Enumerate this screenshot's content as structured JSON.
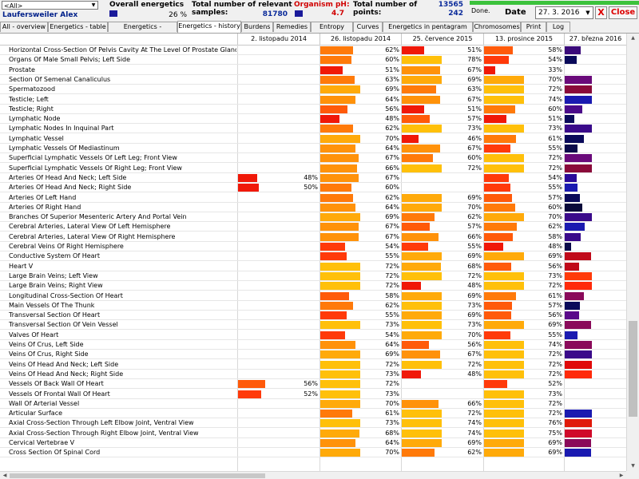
{
  "header": {
    "filter_value": "<All>",
    "user_name": "Laufersweiler Alex",
    "overall_label": "Overall energetics",
    "overall_value": "26 %",
    "samples_label_1": "Total number of relevant",
    "samples_label_2": "samples:",
    "samples_value": "81780",
    "ph_label": "Organism pH:",
    "ph_value": "4.7",
    "points_label_1": "Total number of",
    "points_label_2": "points:",
    "points_value_1": "13565",
    "points_value_2": "242",
    "progress": 1.0,
    "status": "Done.",
    "date_label": "Date",
    "date_value": "27. 3. 2016",
    "x_label": "X",
    "close_label": "Close"
  },
  "tabs": [
    "All - overview",
    "Energetics - table",
    "Energetics - overview",
    "Energetics - history",
    "Burdens",
    "Remedies",
    "Entropy analysis",
    "Curves",
    "Energetics in pentagram",
    "Chromosomes",
    "Print",
    "Log"
  ],
  "active_tab": "Energetics - history",
  "columns": [
    "2. listopadu 2014",
    "26. listopadu 2014",
    "25. července 2015",
    "13. prosince 2015",
    "27. března 2016"
  ],
  "rows": [
    {
      "name": "Horizontal Cross-Section Of Pelvis Cavity At The Level Of Prostate Gland",
      "v": [
        null,
        62,
        51,
        58,
        0
      ]
    },
    {
      "name": "Organs Of Male Small Pelvis; Left Side",
      "v": [
        null,
        60,
        78,
        54,
        0
      ]
    },
    {
      "name": "Prostate",
      "v": [
        null,
        51,
        67,
        33,
        0
      ]
    },
    {
      "name": "Section Of Semenal Canaliculus",
      "v": [
        null,
        63,
        69,
        70,
        0
      ]
    },
    {
      "name": "Spermatozood",
      "v": [
        null,
        69,
        63,
        72,
        0
      ]
    },
    {
      "name": "Testicle; Left",
      "v": [
        null,
        64,
        67,
        74,
        0
      ]
    },
    {
      "name": "Testicle; Right",
      "v": [
        null,
        56,
        51,
        60,
        0
      ]
    },
    {
      "name": "Lymphatic Node",
      "v": [
        null,
        48,
        57,
        51,
        0
      ]
    },
    {
      "name": "Lymphatic Nodes In Inquinal Part",
      "v": [
        null,
        62,
        73,
        73,
        0
      ]
    },
    {
      "name": "Lymphatic Vessel",
      "v": [
        null,
        70,
        46,
        61,
        0
      ]
    },
    {
      "name": "Lymphatic Vessels Of Mediastinum",
      "v": [
        null,
        64,
        67,
        55,
        0
      ]
    },
    {
      "name": "Superficial Lymphatic Vessels Of Left Leg; Front View",
      "v": [
        null,
        67,
        60,
        72,
        0
      ]
    },
    {
      "name": "Superficial Lymphatic Vessels Of Right Leg; Front View",
      "v": [
        null,
        66,
        72,
        72,
        0
      ]
    },
    {
      "name": "Arteries Of Head And Neck; Left Side",
      "v": [
        48,
        67,
        null,
        54,
        0
      ]
    },
    {
      "name": "Arteries Of Head And Neck; Right Side",
      "v": [
        50,
        60,
        null,
        55,
        0
      ]
    },
    {
      "name": "Arteries Of Left Hand",
      "v": [
        null,
        62,
        69,
        57,
        0
      ]
    },
    {
      "name": "Arteries Of Right Hand",
      "v": [
        null,
        64,
        70,
        60,
        0
      ]
    },
    {
      "name": "Branches Of Superior Mesenteric Artery And Portal Vein",
      "v": [
        null,
        69,
        62,
        70,
        0
      ]
    },
    {
      "name": "Cerebral Arteries, Lateral View Of Left Hemisphere",
      "v": [
        null,
        67,
        57,
        62,
        0
      ]
    },
    {
      "name": "Cerebral Arteries, Lateral View Of Right Hemisphere",
      "v": [
        null,
        67,
        66,
        58,
        0
      ]
    },
    {
      "name": "Cerebral Veins Of Right Hemisphere",
      "v": [
        null,
        54,
        55,
        48,
        0
      ]
    },
    {
      "name": "Conductive System Of Heart",
      "v": [
        null,
        55,
        69,
        69,
        0
      ]
    },
    {
      "name": "Heart V",
      "v": [
        null,
        72,
        68,
        56,
        0
      ]
    },
    {
      "name": "Large Brain Veins; Left View",
      "v": [
        null,
        72,
        72,
        73,
        0
      ]
    },
    {
      "name": "Large Brain Veins; Right View",
      "v": [
        null,
        72,
        48,
        72,
        0
      ]
    },
    {
      "name": "Longitudinal Cross-Section Of Heart",
      "v": [
        null,
        58,
        69,
        61,
        0
      ]
    },
    {
      "name": "Main Vessels Of The Thunk",
      "v": [
        null,
        62,
        73,
        57,
        0
      ]
    },
    {
      "name": "Transversal Section Of Heart",
      "v": [
        null,
        55,
        69,
        56,
        0
      ]
    },
    {
      "name": "Transversal Section Of Vein Vessel",
      "v": [
        null,
        73,
        73,
        69,
        0
      ]
    },
    {
      "name": "Valves Of Heart",
      "v": [
        null,
        54,
        70,
        55,
        0
      ]
    },
    {
      "name": "Veins Of Crus, Left Side",
      "v": [
        null,
        64,
        56,
        74,
        0
      ]
    },
    {
      "name": "Veins Of Crus, Right Side",
      "v": [
        null,
        69,
        67,
        72,
        0
      ]
    },
    {
      "name": "Veins Of Head And Neck; Left Side",
      "v": [
        null,
        72,
        72,
        72,
        0
      ]
    },
    {
      "name": "Veins Of Head And Neck; Right Side",
      "v": [
        null,
        73,
        48,
        72,
        0
      ]
    },
    {
      "name": "Vessels Of Back Wall Of Heart",
      "v": [
        56,
        72,
        null,
        52,
        0
      ]
    },
    {
      "name": "Vessels Of Frontal Wall Of Heart",
      "v": [
        52,
        73,
        null,
        73,
        0
      ]
    },
    {
      "name": "Wall Of Arterial Vessel",
      "v": [
        null,
        70,
        66,
        72,
        0
      ]
    },
    {
      "name": "Articular Surface",
      "v": [
        null,
        61,
        72,
        72,
        0
      ]
    },
    {
      "name": "Axial Cross-Section Through Left Elbow Joint, Ventral View",
      "v": [
        null,
        73,
        74,
        76,
        0
      ]
    },
    {
      "name": "Axial Cross-Section Through Right Elbow Joint, Ventral View",
      "v": [
        null,
        68,
        74,
        75,
        0
      ]
    },
    {
      "name": "Cervical Vertebrae V",
      "v": [
        null,
        64,
        69,
        69,
        0
      ]
    },
    {
      "name": "Cross Section Of Spinal Cord",
      "v": [
        null,
        70,
        62,
        69,
        0
      ]
    }
  ],
  "last_col_colors": [
    "#3a0a7a",
    "#0a0a5a",
    "#ffffff",
    "#6a0a7a",
    "#8a0a3a",
    "#1a1ab0",
    "#4a0a8a",
    "#0a0a5a",
    "#3a0a8a",
    "#0a0a5a",
    "#0a0a4a",
    "#6a0a7a",
    "#8a0a3a",
    "#2a0a9a",
    "#1a1ab0",
    "#0a0a5a",
    "#0a0a3a",
    "#3a0a8a",
    "#1a1ab0",
    "#3a0a8a",
    "#0a0a4a",
    "#c00a1a",
    "#c00a1a",
    "#ff3a0a",
    "#ff2a0a",
    "#8a0a5a",
    "#0a0a5a",
    "#5a0a8a",
    "#8a0a5a",
    "#1a1ab0",
    "#8a0a5a",
    "#3a0a8a",
    "#e00a0a",
    "#ff2a0a",
    "#ffffff",
    "#ffffff",
    "#ffffff",
    "#1a1ab0",
    "#e01a0a",
    "#d00a2a",
    "#8a0a5a",
    "#1a1ab0"
  ]
}
